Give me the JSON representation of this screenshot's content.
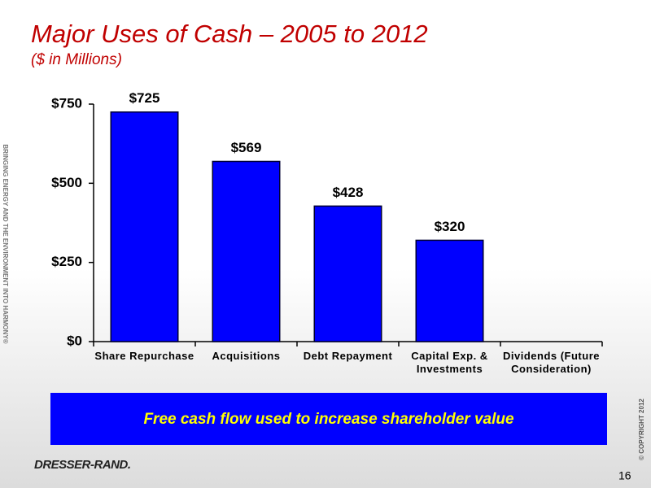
{
  "chart_data": {
    "type": "bar",
    "title": "Major Uses of Cash – 2005 to 2012",
    "subtitle": "($ in Millions)",
    "categories": [
      "Share Repurchase",
      "Acquisitions",
      "Debt Repayment",
      "Capital Exp. & Investments",
      "Dividends (Future Consideration)"
    ],
    "values": [
      725,
      569,
      428,
      320,
      null
    ],
    "value_labels": [
      "$725",
      "$569",
      "$428",
      "$320",
      null
    ],
    "color": "#0000ff",
    "ylim": [
      0,
      750
    ],
    "yticks": [
      {
        "value": 0,
        "label": "$0"
      },
      {
        "value": 250,
        "label": "$250"
      },
      {
        "value": 500,
        "label": "$500"
      },
      {
        "value": 750,
        "label": "$750"
      }
    ],
    "grid": false
  },
  "slide": {
    "banner": "Free cash flow used to increase shareholder value",
    "tagline": "BRINGING ENERGY AND THE ENVIRONMENT INTO HARMONY®",
    "copyright": "© COPYRIGHT 2012",
    "logo": "DRESSER-RAND.",
    "page_number": "16"
  }
}
